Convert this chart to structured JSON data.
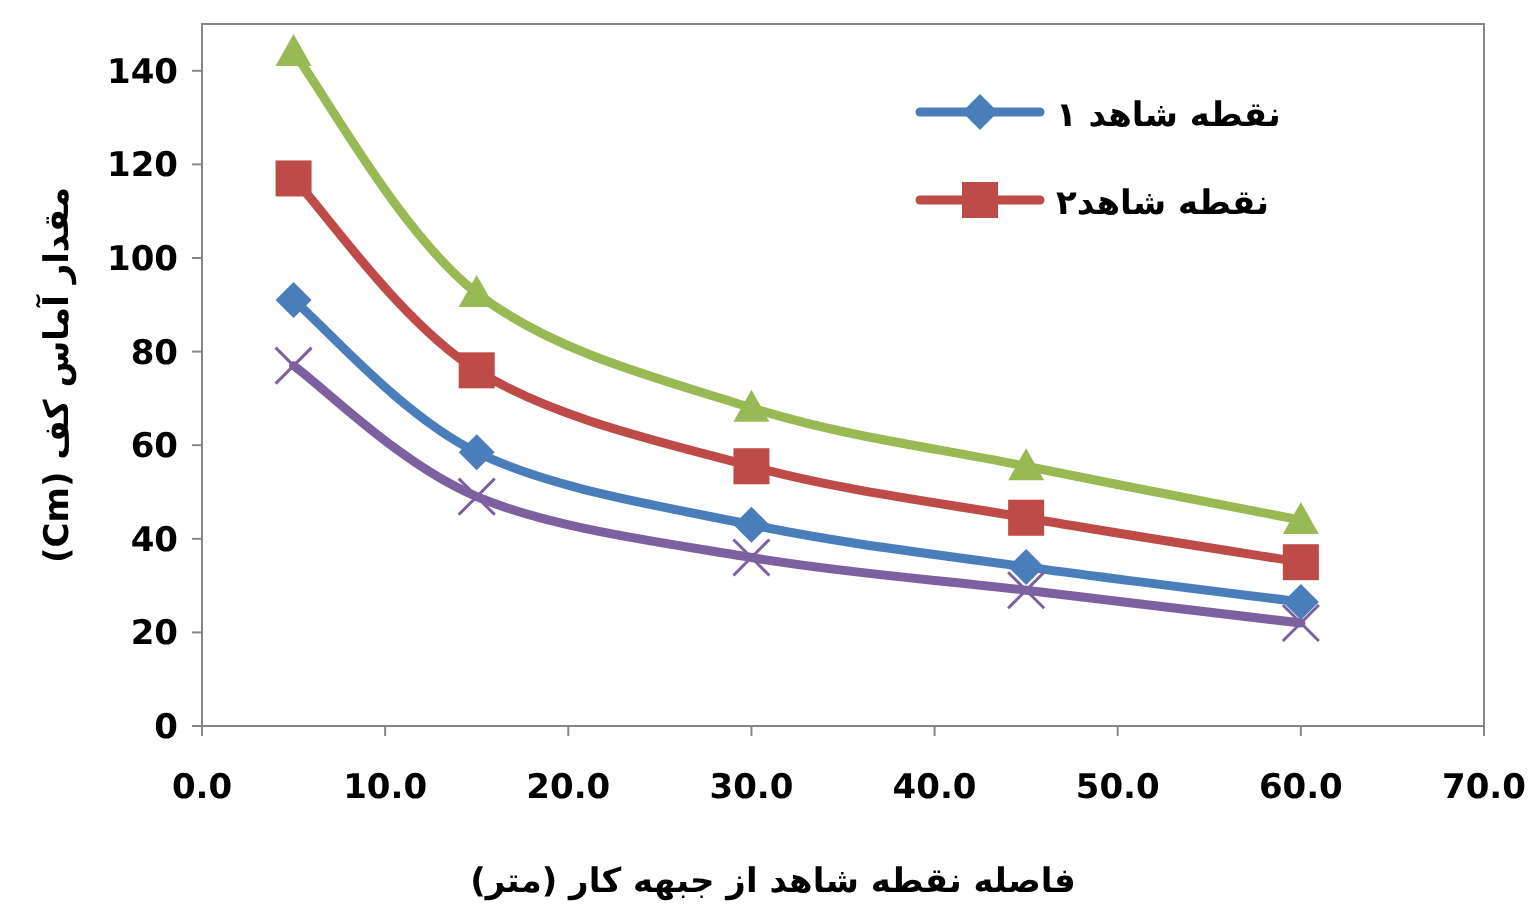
{
  "chart_data": {
    "type": "line",
    "xlabel": "فاصله نقطه شاهد از جبهه کار (متر)",
    "ylabel": "مقدار آماس کف (Cm)",
    "x": [
      5,
      15,
      30,
      45,
      60
    ],
    "series": [
      {
        "name": "نقطه شاهد ۱",
        "color": "#4a7ebb",
        "marker": "diamond",
        "values": [
          91,
          58.5,
          43,
          34,
          26.5
        ]
      },
      {
        "name": "نقطه شاهد۲",
        "color": "#be4b48",
        "marker": "square",
        "values": [
          117,
          76,
          55.5,
          44.5,
          35
        ]
      },
      {
        "color": "#98b954",
        "marker": "triangle",
        "values": [
          144,
          92.5,
          68,
          55.5,
          44
        ]
      },
      {
        "color": "#7d60a0",
        "marker": "cross",
        "values": [
          77,
          49,
          36,
          29,
          22
        ]
      }
    ],
    "xlim": [
      0,
      70
    ],
    "xticks": [
      {
        "value": 0,
        "label": "0.0"
      },
      {
        "value": 10,
        "label": "10.0"
      },
      {
        "value": 20,
        "label": "20.0"
      },
      {
        "value": 30,
        "label": "30.0"
      },
      {
        "value": 40,
        "label": "40.0"
      },
      {
        "value": 50,
        "label": "50.0"
      },
      {
        "value": 60,
        "label": "60.0"
      },
      {
        "value": 70,
        "label": "70.0"
      }
    ],
    "ylim": [
      0,
      150
    ],
    "yticks": [
      0,
      20,
      40,
      60,
      80,
      100,
      120,
      140
    ],
    "grid": false,
    "legend": "top right"
  }
}
